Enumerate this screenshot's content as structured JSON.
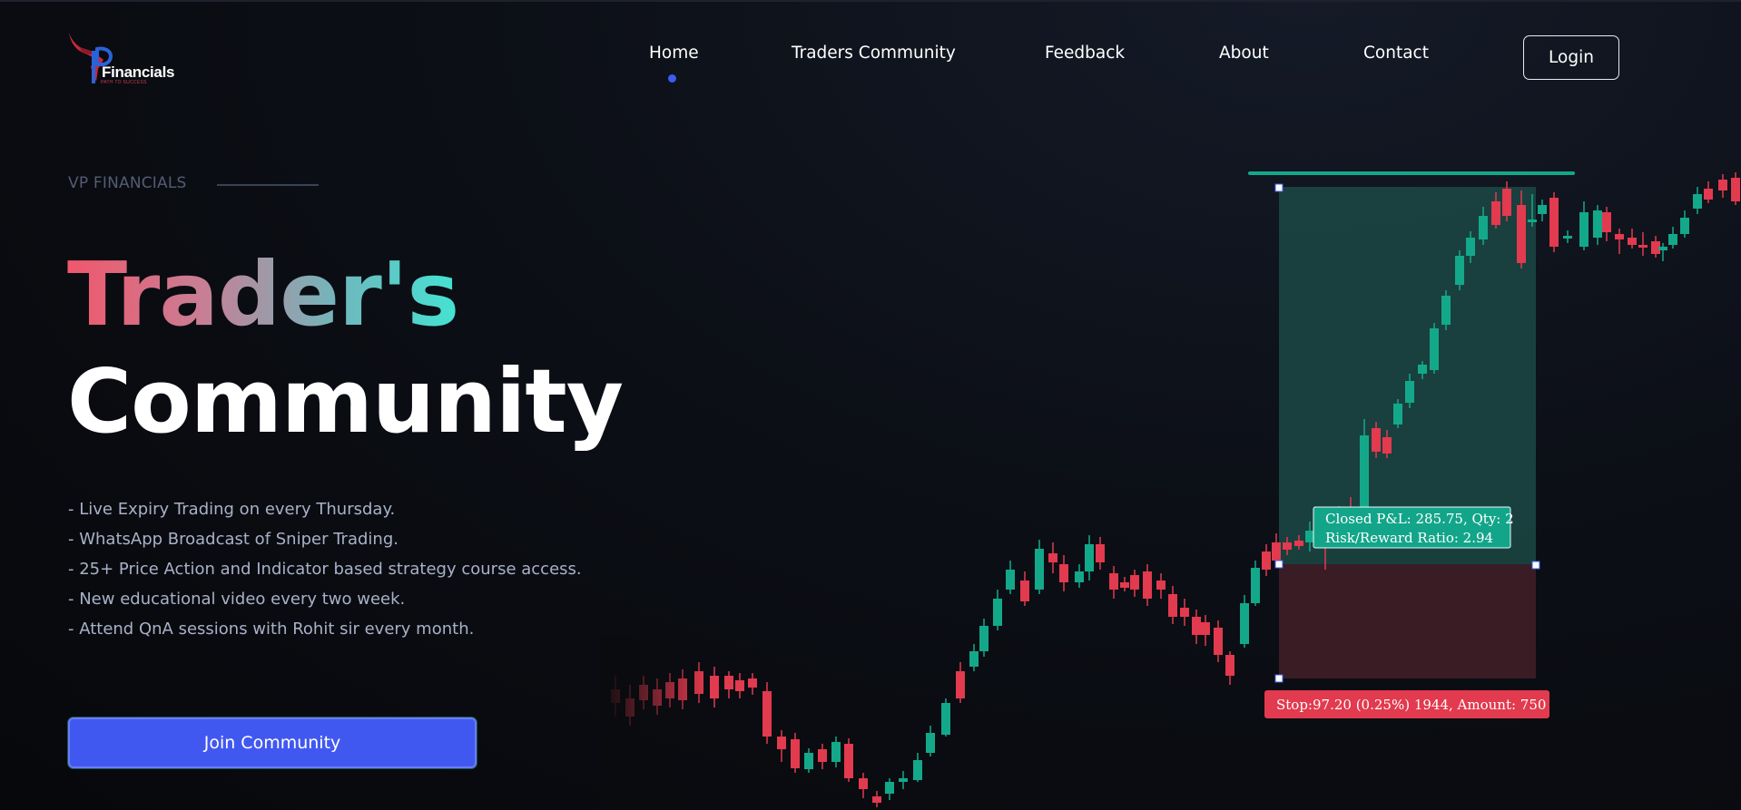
{
  "brand": {
    "name": "Financials",
    "tagline": "PATH TO SUCCESS",
    "logo_icon": "vp-bull-logo-icon"
  },
  "nav": {
    "items": [
      {
        "label": "Home",
        "active": true
      },
      {
        "label": "Traders Community",
        "active": false
      },
      {
        "label": "Feedback",
        "active": false
      },
      {
        "label": "About",
        "active": false
      },
      {
        "label": "Contact",
        "active": false
      }
    ],
    "login_label": "Login"
  },
  "hero": {
    "kicker": "VP FINANCIALS",
    "title_line1": "Trader's",
    "title_line2": "Community",
    "features": [
      "- Live Expiry Trading on every Thursday.",
      "- WhatsApp Broadcast of Sniper Trading.",
      "- 25+ Price Action and Indicator based strategy course access.",
      "- New educational video every two week.",
      "- Attend QnA sessions with Rohit sir every month."
    ],
    "cta_label": "Join Community"
  },
  "chart_overlay": {
    "closed_pnl_line": "Closed P&L: 285.75, Qty: 2",
    "risk_reward_line": "Risk/Reward Ratio: 2.94",
    "stop_label": "Stop:97.20 (0.25%) 1944, Amount: 750"
  },
  "colors": {
    "accent": "#4158f0",
    "bull": "#14a88a",
    "bear": "#e23a4e",
    "profit_zone": "#1c4a47",
    "loss_zone": "#44202a"
  }
}
